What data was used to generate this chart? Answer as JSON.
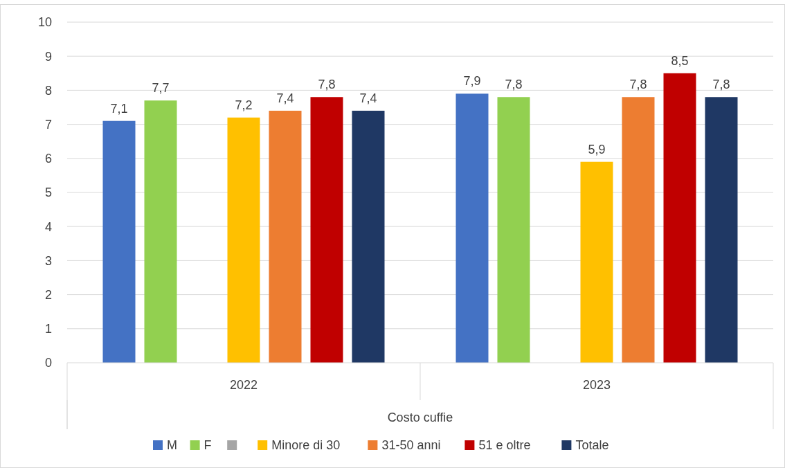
{
  "chart_data": {
    "type": "bar",
    "xlabel": "Costo cuffie",
    "categories": [
      "2022",
      "2023"
    ],
    "series": [
      {
        "name": "M",
        "color": "#4472c4",
        "values": [
          7.1,
          7.9
        ],
        "value_labels": [
          "7,1",
          "7,9"
        ]
      },
      {
        "name": "F",
        "color": "#92d050",
        "values": [
          7.7,
          7.8
        ],
        "value_labels": [
          "7,7",
          "7,8"
        ]
      },
      {
        "color": "#a5a5a5",
        "values": [
          null,
          null
        ]
      },
      {
        "name": "Minore di 30",
        "color": "#ffc000",
        "values": [
          7.2,
          5.9
        ],
        "value_labels": [
          "7,2",
          "5,9"
        ]
      },
      {
        "name": "31-50 anni",
        "color": "#ed7d31",
        "values": [
          7.4,
          7.8
        ],
        "value_labels": [
          "7,4",
          "7,8"
        ]
      },
      {
        "name": "51 e oltre",
        "color": "#c00000",
        "values": [
          7.8,
          8.5
        ],
        "value_labels": [
          "7,8",
          "8,5"
        ]
      },
      {
        "name": "Totale",
        "color": "#1f3864",
        "values": [
          7.4,
          7.8
        ],
        "value_labels": [
          "7,4",
          "7,8"
        ]
      }
    ],
    "ylim": [
      0,
      10
    ],
    "yticks": [
      0,
      1,
      2,
      3,
      4,
      5,
      6,
      7,
      8,
      9,
      10
    ],
    "grid": "y",
    "legend": "bottom"
  }
}
